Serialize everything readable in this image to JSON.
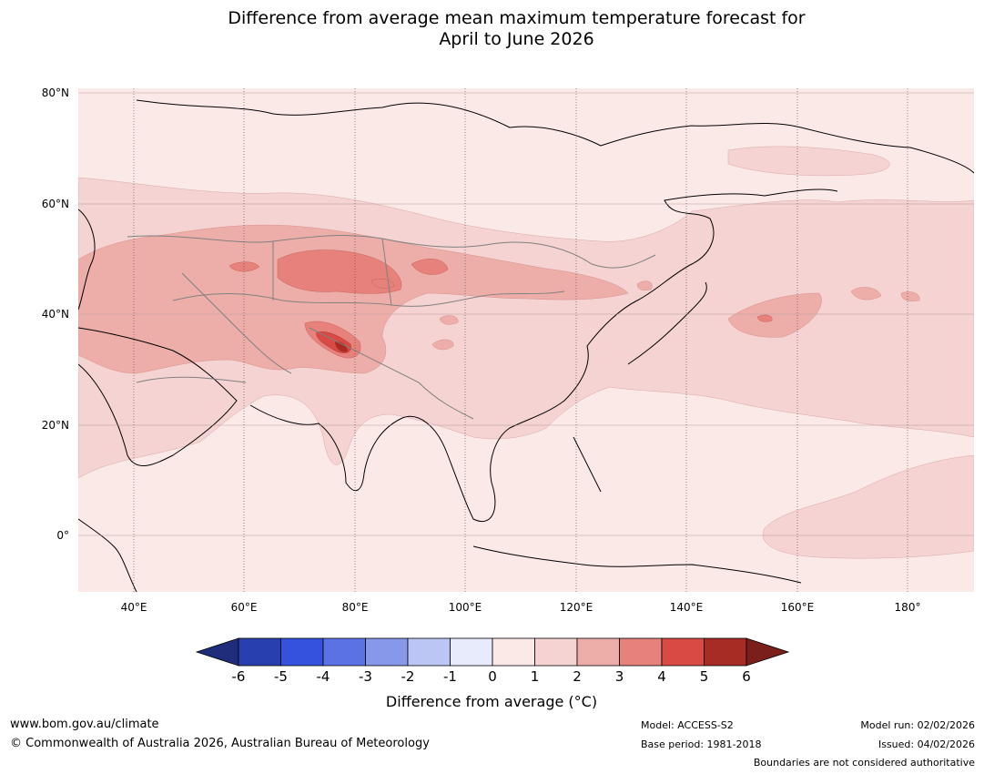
{
  "title": {
    "line1": "Difference from average mean maximum temperature forecast for",
    "line2": "April to June 2026"
  },
  "map": {
    "lat_labels": [
      "80°N",
      "60°N",
      "40°N",
      "20°N",
      "0°"
    ],
    "lon_labels": [
      "40°E",
      "60°E",
      "80°E",
      "100°E",
      "120°E",
      "140°E",
      "160°E",
      "180°"
    ]
  },
  "colorbar": {
    "ticks": [
      "-6",
      "-5",
      "-4",
      "-3",
      "-2",
      "-1",
      "0",
      "1",
      "2",
      "3",
      "4",
      "5",
      "6"
    ],
    "label": "Difference from average (°C)",
    "colors": [
      "#1f2d7a",
      "#283fb0",
      "#3452dd",
      "#5b72e4",
      "#8797ea",
      "#bcc6f4",
      "#e8ebfb",
      "#fbe9e8",
      "#f4d3d2",
      "#edaeaa",
      "#e6817b",
      "#d84a43",
      "#a72c24",
      "#7a1f1a"
    ]
  },
  "footer": {
    "url": "www.bom.gov.au/climate",
    "copyright": "© Commonwealth of Australia 2026, Australian Bureau of Meteorology",
    "model": "Model: ACCESS-S2",
    "base_period": "Base period: 1981-2018",
    "model_run": "Model run: 02/02/2026",
    "issued": "Issued: 04/02/2026",
    "disclaimer": "Boundaries are not considered authoritative"
  }
}
